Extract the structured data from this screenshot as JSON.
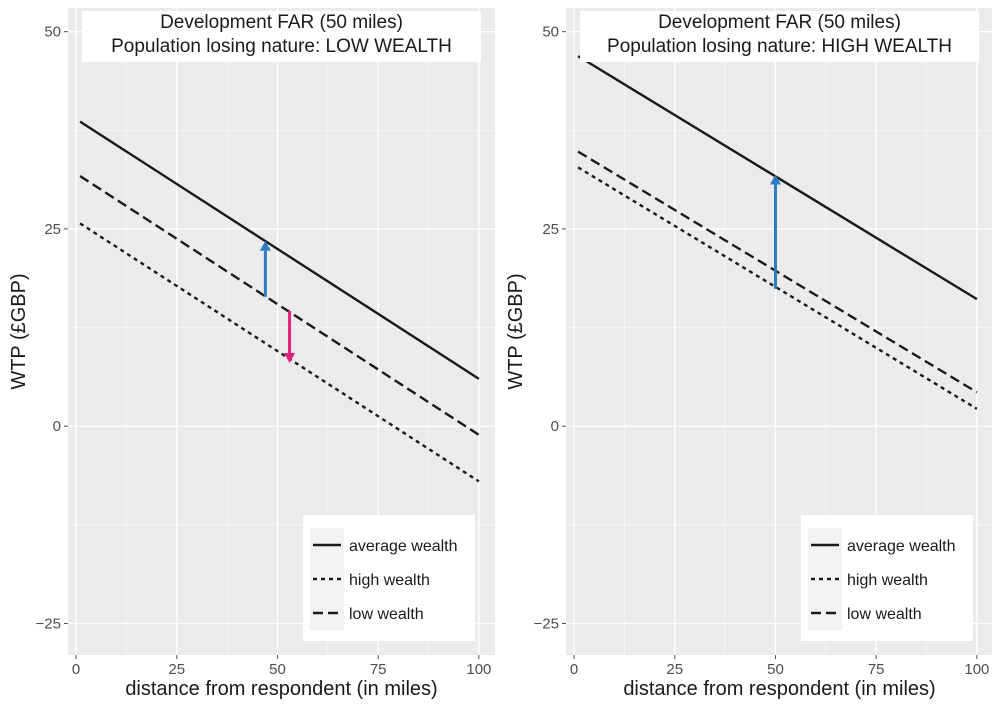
{
  "chart_data": [
    {
      "type": "line",
      "title": "Development FAR (50 miles)",
      "subtitle": "Population losing nature: LOW WEALTH",
      "xlabel": "distance from respondent (in miles)",
      "ylabel": "WTP (£GBP)",
      "xlim": [
        -2,
        104
      ],
      "ylim": [
        -29,
        53
      ],
      "xticks": [
        0,
        25,
        50,
        75,
        100
      ],
      "yticks": [
        -25,
        0,
        25,
        50
      ],
      "grid": true,
      "legend_position": "bottom-right",
      "series": [
        {
          "name": "average wealth",
          "linetype": "solid",
          "x": [
            1,
            100
          ],
          "y": [
            38.6,
            6.0
          ]
        },
        {
          "name": "high wealth",
          "linetype": "dotted",
          "x": [
            1,
            100
          ],
          "y": [
            25.7,
            -7.0
          ]
        },
        {
          "name": "low wealth",
          "linetype": "dashed",
          "x": [
            1,
            100
          ],
          "y": [
            31.7,
            -1.1
          ]
        }
      ],
      "arrows": [
        {
          "color": "#2f7bbf",
          "x": 47,
          "y_from": 16.4,
          "y_to": 23.5
        },
        {
          "color": "#e0217f",
          "x": 53,
          "y_from": 14.6,
          "y_to": 8.0
        }
      ]
    },
    {
      "type": "line",
      "title": "Development FAR (50 miles)",
      "subtitle": "Population losing nature: HIGH WEALTH",
      "xlabel": "distance from respondent (in miles)",
      "ylabel": "WTP (£GBP)",
      "xlim": [
        -2,
        104
      ],
      "ylim": [
        -29,
        53
      ],
      "xticks": [
        0,
        25,
        50,
        75,
        100
      ],
      "yticks": [
        -25,
        0,
        25,
        50
      ],
      "grid": true,
      "legend_position": "bottom-right",
      "series": [
        {
          "name": "average wealth",
          "linetype": "solid",
          "x": [
            1,
            100
          ],
          "y": [
            46.9,
            16.1
          ]
        },
        {
          "name": "high wealth",
          "linetype": "dotted",
          "x": [
            1,
            100
          ],
          "y": [
            32.8,
            2.2
          ]
        },
        {
          "name": "low wealth",
          "linetype": "dashed",
          "x": [
            1,
            100
          ],
          "y": [
            34.8,
            4.3
          ]
        }
      ],
      "arrows": [
        {
          "color": "#2f7bbf",
          "x": 50,
          "y_from": 17.4,
          "y_to": 31.9
        }
      ]
    }
  ]
}
